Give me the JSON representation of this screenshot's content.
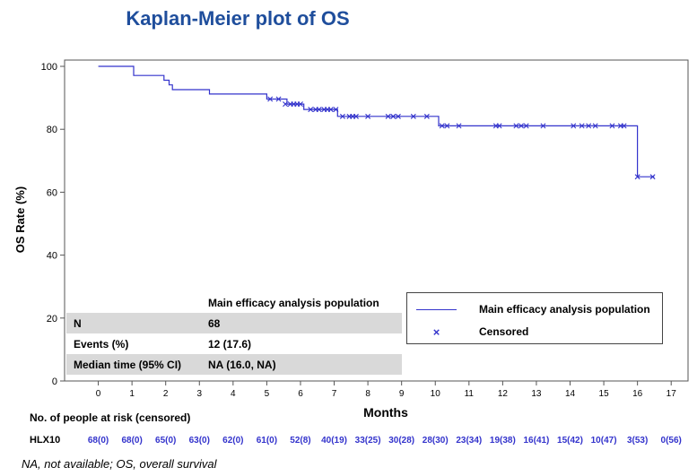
{
  "chart_data": {
    "type": "line",
    "title": "Kaplan-Meier plot of OS",
    "xlabel": "Months",
    "ylabel": "OS Rate (%)",
    "xlim": [
      -1,
      17.5
    ],
    "ylim": [
      0,
      102
    ],
    "x_ticks": [
      0,
      1,
      2,
      3,
      4,
      5,
      6,
      7,
      8,
      9,
      10,
      11,
      12,
      13,
      14,
      15,
      16,
      17
    ],
    "y_ticks": [
      0,
      20,
      40,
      60,
      80,
      100
    ],
    "grid": false,
    "series": [
      {
        "name": "Main efficacy analysis population",
        "color": "#3333cc",
        "step_points": [
          [
            0,
            100
          ],
          [
            1.05,
            100
          ],
          [
            1.05,
            97.1
          ],
          [
            1.95,
            97.1
          ],
          [
            1.95,
            95.6
          ],
          [
            2.1,
            95.6
          ],
          [
            2.1,
            94.1
          ],
          [
            2.2,
            94.1
          ],
          [
            2.2,
            92.6
          ],
          [
            3.3,
            92.6
          ],
          [
            3.3,
            91.2
          ],
          [
            5.0,
            91.2
          ],
          [
            5.0,
            89.6
          ],
          [
            5.6,
            89.6
          ],
          [
            5.6,
            88.0
          ],
          [
            6.1,
            88.0
          ],
          [
            6.1,
            86.3
          ],
          [
            7.1,
            86.3
          ],
          [
            7.1,
            84.1
          ],
          [
            10.1,
            84.1
          ],
          [
            10.1,
            81.1
          ],
          [
            16.0,
            81.1
          ],
          [
            16.0,
            64.9
          ],
          [
            16.5,
            64.9
          ]
        ],
        "censored": [
          [
            5.1,
            89.6
          ],
          [
            5.35,
            89.6
          ],
          [
            5.55,
            88.0
          ],
          [
            5.7,
            88.0
          ],
          [
            5.8,
            88.0
          ],
          [
            5.9,
            88.0
          ],
          [
            6.0,
            88.0
          ],
          [
            6.3,
            86.3
          ],
          [
            6.45,
            86.3
          ],
          [
            6.55,
            86.3
          ],
          [
            6.7,
            86.3
          ],
          [
            6.8,
            86.3
          ],
          [
            6.9,
            86.3
          ],
          [
            7.05,
            86.3
          ],
          [
            7.25,
            84.1
          ],
          [
            7.45,
            84.1
          ],
          [
            7.55,
            84.1
          ],
          [
            7.65,
            84.1
          ],
          [
            8.0,
            84.1
          ],
          [
            8.6,
            84.1
          ],
          [
            8.75,
            84.1
          ],
          [
            8.9,
            84.1
          ],
          [
            9.35,
            84.1
          ],
          [
            9.75,
            84.1
          ],
          [
            10.2,
            81.1
          ],
          [
            10.35,
            81.1
          ],
          [
            10.7,
            81.1
          ],
          [
            11.8,
            81.1
          ],
          [
            11.9,
            81.1
          ],
          [
            12.4,
            81.1
          ],
          [
            12.55,
            81.1
          ],
          [
            12.7,
            81.1
          ],
          [
            13.2,
            81.1
          ],
          [
            14.1,
            81.1
          ],
          [
            14.35,
            81.1
          ],
          [
            14.55,
            81.1
          ],
          [
            14.75,
            81.1
          ],
          [
            15.25,
            81.1
          ],
          [
            15.5,
            81.1
          ],
          [
            15.6,
            81.1
          ],
          [
            16.0,
            64.9
          ],
          [
            16.45,
            64.9
          ]
        ]
      }
    ],
    "legend": {
      "position": "bottom-right",
      "entries": [
        {
          "label": "Main efficacy analysis population",
          "symbol": "line"
        },
        {
          "label": "Censored",
          "symbol": "x"
        }
      ]
    },
    "stats_table": {
      "header": "Main efficacy analysis population",
      "rows": [
        {
          "label": "N",
          "value": "68"
        },
        {
          "label": "Events (%)",
          "value": "12 (17.6)"
        },
        {
          "label": "Median time (95% CI)",
          "value": "NA (16.0, NA)"
        }
      ]
    },
    "risk_table": {
      "title": "No. of people at risk (censored)",
      "group": "HLX10",
      "values": [
        "68(0)",
        "68(0)",
        "65(0)",
        "63(0)",
        "62(0)",
        "61(0)",
        "52(8)",
        "40(19)",
        "33(25)",
        "30(28)",
        "28(30)",
        "23(34)",
        "19(38)",
        "16(41)",
        "15(42)",
        "10(47)",
        "3(53)",
        "0(56)"
      ]
    }
  },
  "footnote": "NA, not available; OS, overall survival"
}
